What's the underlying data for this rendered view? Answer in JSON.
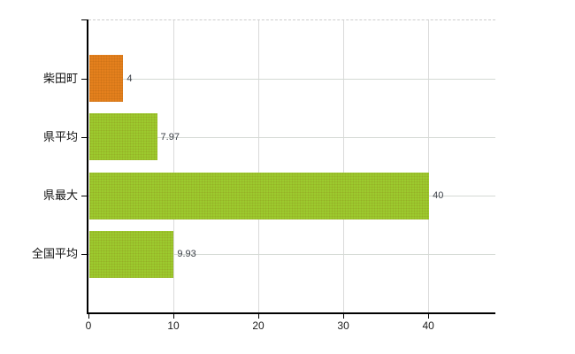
{
  "chart_data": {
    "type": "bar",
    "orientation": "horizontal",
    "title": "",
    "xlabel": "",
    "ylabel": "",
    "categories": [
      "柴田町",
      "県平均",
      "県最大",
      "全国平均"
    ],
    "values": [
      4,
      7.97,
      40,
      9.93
    ],
    "value_labels": [
      "4",
      "7.97",
      "40",
      "9.93"
    ],
    "bar_colors": [
      "#e4801d",
      "#9cca2e",
      "#9cca2e",
      "#9cca2e"
    ],
    "x_ticks": [
      0,
      10,
      20,
      30,
      40
    ],
    "x_tick_labels": [
      "0",
      "10",
      "20",
      "30",
      "40"
    ],
    "xlim": [
      0,
      47.9
    ],
    "grid": true,
    "legend_visible": false
  },
  "colors": {
    "bar_orange": "#e4801d",
    "bar_green": "#9cca2e",
    "gridline_vertical": "#dadada",
    "gridline_horizontal": "#d4d9d4",
    "axis": "#000000",
    "value_label_text": "#3d4149",
    "category_label_text": "#111111",
    "background": "#ffffff"
  }
}
